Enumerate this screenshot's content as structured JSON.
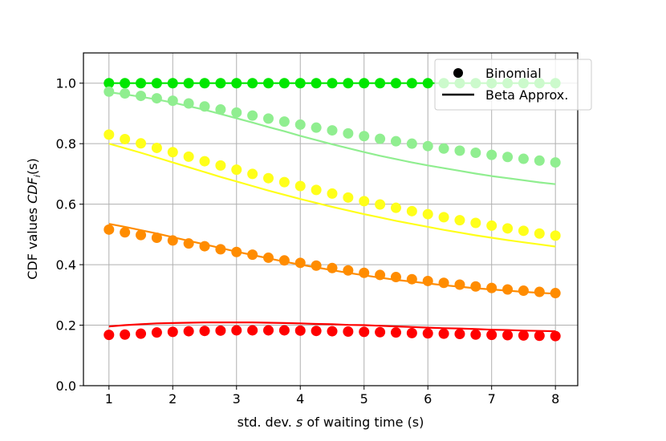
{
  "chart_data": {
    "type": "scatter",
    "xlabel_pre": "std. dev. ",
    "xlabel_var": "s",
    "xlabel_post": " of waiting time (s)",
    "ylabel_pre": "CDF values ",
    "ylabel_var": "CDF",
    "ylabel_sub": "i",
    "ylabel_post": "(s)",
    "xlim": [
      0.6,
      8.35
    ],
    "ylim": [
      0.0,
      1.1
    ],
    "xticks": [
      1,
      2,
      3,
      4,
      5,
      6,
      7,
      8
    ],
    "xtick_labels": [
      "1",
      "2",
      "3",
      "4",
      "5",
      "6",
      "7",
      "8"
    ],
    "yticks": [
      0.0,
      0.2,
      0.4,
      0.6,
      0.8,
      1.0
    ],
    "ytick_labels": [
      "0.0",
      "0.2",
      "0.4",
      "0.6",
      "0.8",
      "1.0"
    ],
    "grid": true,
    "legend": {
      "position": "top-right",
      "items": [
        {
          "label": "Binomial",
          "marker": "dot"
        },
        {
          "label": "Beta Approx.",
          "marker": "line"
        }
      ]
    },
    "x": [
      1.0,
      1.25,
      1.5,
      1.75,
      2.0,
      2.25,
      2.5,
      2.75,
      3.0,
      3.25,
      3.5,
      3.75,
      4.0,
      4.25,
      4.5,
      4.75,
      5.0,
      5.25,
      5.5,
      5.75,
      6.0,
      6.25,
      6.5,
      6.75,
      7.0,
      7.25,
      7.5,
      7.75,
      8.0
    ],
    "series": [
      {
        "name": "green",
        "color": "#00e600",
        "binomial": [
          1.0,
          1.0,
          1.0,
          1.0,
          1.0,
          1.0,
          1.0,
          1.0,
          1.0,
          1.0,
          1.0,
          1.0,
          1.0,
          1.0,
          1.0,
          1.0,
          1.0,
          1.0,
          1.0,
          1.0,
          1.0,
          1.0,
          1.0,
          1.0,
          1.0,
          1.0,
          1.0,
          1.0,
          1.0
        ],
        "beta": [
          1.0,
          1.0,
          1.0,
          1.0,
          1.0,
          1.0,
          1.0,
          1.0,
          1.0,
          1.0,
          1.0,
          1.0,
          1.0,
          1.0,
          1.0,
          1.0,
          1.0,
          1.0,
          1.0,
          1.0,
          1.0,
          1.0,
          1.0,
          1.0,
          1.0,
          1.0,
          1.0,
          1.0,
          1.0
        ]
      },
      {
        "name": "light-green",
        "color": "#90ee90",
        "binomial": [
          0.972,
          0.966,
          0.958,
          0.95,
          0.942,
          0.933,
          0.923,
          0.913,
          0.903,
          0.893,
          0.883,
          0.873,
          0.863,
          0.853,
          0.844,
          0.834,
          0.825,
          0.816,
          0.808,
          0.8,
          0.792,
          0.784,
          0.777,
          0.77,
          0.763,
          0.756,
          0.75,
          0.744,
          0.738
        ],
        "beta": [
          0.97,
          0.963,
          0.955,
          0.946,
          0.936,
          0.924,
          0.912,
          0.898,
          0.884,
          0.87,
          0.855,
          0.841,
          0.826,
          0.812,
          0.798,
          0.785,
          0.772,
          0.76,
          0.749,
          0.738,
          0.728,
          0.719,
          0.71,
          0.701,
          0.693,
          0.686,
          0.679,
          0.672,
          0.666
        ]
      },
      {
        "name": "yellow",
        "color": "#ffff1a",
        "binomial": [
          0.83,
          0.815,
          0.801,
          0.786,
          0.772,
          0.757,
          0.742,
          0.728,
          0.714,
          0.7,
          0.686,
          0.673,
          0.66,
          0.647,
          0.635,
          0.622,
          0.61,
          0.599,
          0.588,
          0.577,
          0.567,
          0.557,
          0.547,
          0.538,
          0.529,
          0.52,
          0.512,
          0.503,
          0.496
        ],
        "beta": [
          0.8,
          0.785,
          0.77,
          0.754,
          0.738,
          0.722,
          0.706,
          0.69,
          0.675,
          0.66,
          0.645,
          0.631,
          0.617,
          0.604,
          0.591,
          0.579,
          0.567,
          0.556,
          0.545,
          0.535,
          0.525,
          0.515,
          0.506,
          0.497,
          0.489,
          0.481,
          0.474,
          0.467,
          0.46
        ]
      },
      {
        "name": "orange",
        "color": "#ff8c00",
        "binomial": [
          0.516,
          0.507,
          0.498,
          0.489,
          0.48,
          0.47,
          0.461,
          0.451,
          0.442,
          0.433,
          0.423,
          0.414,
          0.406,
          0.397,
          0.389,
          0.381,
          0.373,
          0.366,
          0.359,
          0.352,
          0.346,
          0.34,
          0.334,
          0.328,
          0.323,
          0.318,
          0.314,
          0.31,
          0.306
        ],
        "beta": [
          0.535,
          0.525,
          0.514,
          0.503,
          0.491,
          0.479,
          0.467,
          0.455,
          0.443,
          0.432,
          0.421,
          0.41,
          0.4,
          0.391,
          0.382,
          0.373,
          0.365,
          0.357,
          0.35,
          0.344,
          0.338,
          0.332,
          0.327,
          0.322,
          0.318,
          0.314,
          0.31,
          0.307,
          0.304
        ]
      },
      {
        "name": "red",
        "color": "#ff0000",
        "binomial": [
          0.168,
          0.169,
          0.172,
          0.176,
          0.178,
          0.18,
          0.181,
          0.182,
          0.183,
          0.183,
          0.183,
          0.183,
          0.182,
          0.181,
          0.18,
          0.179,
          0.178,
          0.177,
          0.176,
          0.174,
          0.173,
          0.172,
          0.171,
          0.169,
          0.168,
          0.167,
          0.166,
          0.165,
          0.164
        ],
        "beta": [
          0.196,
          0.2,
          0.203,
          0.206,
          0.207,
          0.208,
          0.209,
          0.209,
          0.209,
          0.209,
          0.208,
          0.207,
          0.206,
          0.204,
          0.203,
          0.201,
          0.2,
          0.198,
          0.196,
          0.194,
          0.192,
          0.19,
          0.189,
          0.187,
          0.185,
          0.184,
          0.182,
          0.181,
          0.18
        ]
      }
    ]
  }
}
